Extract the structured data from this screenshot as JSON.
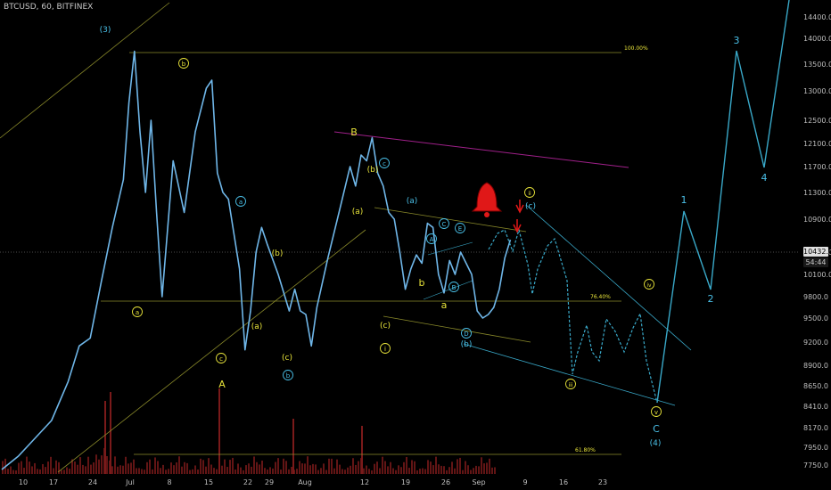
{
  "header": {
    "symbol_line": "BTCUSD, 60, BITFINEX"
  },
  "price_tag": {
    "value": "10432.0",
    "countdown": "54:44"
  },
  "colors": {
    "background": "#000000",
    "price_line": "#6fb6e8",
    "projection": "#39a8c8",
    "trend_yellow": "#8a8a2a",
    "magenta_line": "#a0208a",
    "label_yellow": "#e8e43a",
    "label_cyan": "#4ac0e8",
    "alert_red": "#e01818",
    "volume": "#7a1a1a"
  },
  "chart_data": {
    "type": "line",
    "title": "",
    "xlabel": "",
    "ylabel": "",
    "ylim": [
      7600,
      14650
    ],
    "y_ticks": [
      7750,
      7950,
      8170,
      8410,
      8650,
      8900,
      9200,
      9500,
      9800,
      10100,
      10500,
      10900,
      11300,
      11700,
      12100,
      12500,
      13000,
      13500,
      14000,
      14400
    ],
    "x_ticks": [
      "10",
      "17",
      "24",
      "Jul",
      "8",
      "15",
      "22",
      "29",
      "Aug",
      "12",
      "19",
      "26",
      "Sep",
      "9",
      "16",
      "23"
    ],
    "fib_levels": [
      {
        "label": "100.00%",
        "value": 13750
      },
      {
        "label": "76.40%",
        "value": 9720
      },
      {
        "label": "61.80%",
        "value": 7870
      }
    ],
    "series": [
      {
        "points": [
          [
            "Jun 03",
            7700
          ],
          [
            "Jun 06",
            7850
          ],
          [
            "Jun 09",
            8050
          ],
          [
            "Jun 12",
            8250
          ],
          [
            "Jun 15",
            8700
          ],
          [
            "Jun 17",
            9150
          ],
          [
            "Jun 19",
            9250
          ],
          [
            "Jun 21",
            10000
          ],
          [
            "Jun 23",
            10800
          ],
          [
            "Jun 25",
            11500
          ],
          [
            "Jun 26",
            12800
          ],
          [
            "Jun 27",
            13750
          ],
          [
            "Jun 28",
            12300
          ],
          [
            "Jun 29",
            11300
          ],
          [
            "Jun 30",
            12500
          ],
          [
            "Jul 01",
            11000
          ],
          [
            "Jul 02",
            9800
          ],
          [
            "Jul 04",
            11800
          ],
          [
            "Jul 06",
            11000
          ],
          [
            "Jul 08",
            12300
          ],
          [
            "Jul 10",
            13050
          ],
          [
            "Jul 11",
            13200
          ],
          [
            "Jul 12",
            11600
          ],
          [
            "Jul 13",
            11300
          ],
          [
            "Jul 14",
            11200
          ],
          [
            "Jul 16",
            10200
          ],
          [
            "Jul 17",
            9100
          ],
          [
            "Jul 18",
            9600
          ],
          [
            "Jul 19",
            10500
          ],
          [
            "Jul 20",
            10800
          ],
          [
            "Jul 21",
            10600
          ],
          [
            "Jul 23",
            10100
          ],
          [
            "Jul 25",
            9600
          ],
          [
            "Jul 26",
            9900
          ],
          [
            "Jul 27",
            9600
          ],
          [
            "Jul 28",
            9550
          ],
          [
            "Jul 29",
            9150
          ],
          [
            "Jul 30",
            9650
          ],
          [
            "Aug 01",
            10400
          ],
          [
            "Aug 03",
            11000
          ],
          [
            "Aug 05",
            11700
          ],
          [
            "Aug 06",
            11400
          ],
          [
            "Aug 07",
            11900
          ],
          [
            "Aug 08",
            11800
          ],
          [
            "Aug 09",
            12200
          ],
          [
            "Aug 10",
            11600
          ],
          [
            "Aug 11",
            11400
          ],
          [
            "Aug 12",
            11000
          ],
          [
            "Aug 13",
            10900
          ],
          [
            "Aug 14",
            10500
          ],
          [
            "Aug 15",
            9900
          ],
          [
            "Aug 16",
            10200
          ],
          [
            "Aug 17",
            10450
          ],
          [
            "Aug 18",
            10300
          ],
          [
            "Aug 19",
            10850
          ],
          [
            "Aug 20",
            10800
          ],
          [
            "Aug 21",
            10100
          ],
          [
            "Aug 22",
            9850
          ],
          [
            "Aug 23",
            10350
          ],
          [
            "Aug 24",
            10100
          ],
          [
            "Aug 25",
            10500
          ],
          [
            "Aug 26",
            10300
          ],
          [
            "Aug 27",
            10100
          ],
          [
            "Aug 28",
            9600
          ],
          [
            "Aug 29",
            9500
          ],
          [
            "Aug 30",
            9550
          ],
          [
            "Aug 31",
            9650
          ],
          [
            "Sep 01",
            9900
          ],
          [
            "Sep 02",
            10400
          ],
          [
            "Sep 03",
            10650
          ]
        ]
      }
    ],
    "wave_labels_yellow": [
      "(3)",
      "ⓑ",
      "ⓐ",
      "Ⓒ",
      "A",
      "B",
      "(b)",
      "(a)",
      "(c)",
      "ⓘ",
      "a",
      "b",
      "c",
      "(b)",
      "ⓘⓘ",
      "ⓘⓥ",
      "ⓘⓘⓘ",
      "ⓥ"
    ],
    "labels": [
      {
        "text": "(3)",
        "color": "cyan"
      },
      {
        "text": "b",
        "color": "yellow",
        "circled": true
      },
      {
        "text": "a",
        "color": "yellow",
        "circled": true
      },
      {
        "text": "c",
        "color": "yellow",
        "circled": true
      },
      {
        "text": "A",
        "color": "yellow"
      },
      {
        "text": "a",
        "color": "cyan",
        "circled": true
      },
      {
        "text": "(b)",
        "color": "yellow"
      },
      {
        "text": "(a)",
        "color": "yellow"
      },
      {
        "text": "(c)",
        "color": "yellow"
      },
      {
        "text": "c",
        "color": "cyan",
        "circled": true
      },
      {
        "text": "b",
        "color": "cyan",
        "circled": true
      },
      {
        "text": "B",
        "color": "yellow"
      },
      {
        "text": "c",
        "color": "cyan",
        "circled": true
      },
      {
        "text": "(b)",
        "color": "yellow"
      },
      {
        "text": "(a)",
        "color": "yellow"
      },
      {
        "text": "(c)",
        "color": "yellow"
      },
      {
        "text": "i",
        "color": "yellow",
        "circled": true
      },
      {
        "text": "(a)",
        "color": "cyan"
      },
      {
        "text": "A",
        "color": "cyan",
        "circled": true
      },
      {
        "text": "C",
        "color": "cyan",
        "circled": true
      },
      {
        "text": "E",
        "color": "cyan",
        "circled": true
      },
      {
        "text": "b",
        "color": "yellow"
      },
      {
        "text": "a",
        "color": "yellow"
      },
      {
        "text": "B",
        "color": "cyan",
        "circled": true
      },
      {
        "text": "D",
        "color": "cyan",
        "circled": true
      },
      {
        "text": "c",
        "color": "yellow"
      },
      {
        "text": "(b)",
        "color": "cyan"
      },
      {
        "text": "ii",
        "color": "yellow",
        "circled": true
      },
      {
        "text": "(c)",
        "color": "cyan"
      },
      {
        "text": "iv",
        "color": "yellow",
        "circled": true
      },
      {
        "text": "iii",
        "color": "yellow",
        "circled": true
      },
      {
        "text": "v",
        "color": "yellow",
        "circled": true
      },
      {
        "text": "C",
        "color": "cyan"
      },
      {
        "text": "(4)",
        "color": "cyan"
      },
      {
        "text": "1",
        "color": "cyan"
      },
      {
        "text": "2",
        "color": "cyan"
      },
      {
        "text": "3",
        "color": "cyan"
      },
      {
        "text": "4",
        "color": "cyan"
      }
    ]
  }
}
